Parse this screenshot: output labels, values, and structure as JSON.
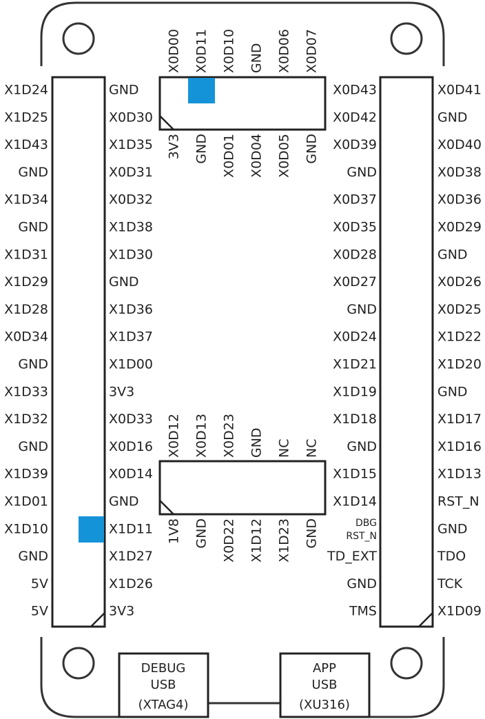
{
  "marker_color": "#1593d8",
  "line_color": "#222222",
  "left_header": {
    "outer_labels": [
      "X1D24",
      "X1D25",
      "X1D43",
      "GND",
      "X1D34",
      "GND",
      "X1D31",
      "X1D29",
      "X1D28",
      "X0D34",
      "GND",
      "X1D33",
      "X1D32",
      "GND",
      "X1D39",
      "X1D01",
      "X1D10",
      "GND",
      "5V",
      "5V"
    ],
    "inner_labels": [
      "GND",
      "X0D30",
      "X1D35",
      "X0D31",
      "X0D32",
      "X1D38",
      "X1D30",
      "GND",
      "X1D36",
      "X1D37",
      "X1D00",
      "3V3",
      "X0D33",
      "X0D16",
      "X0D14",
      "GND",
      "X1D11",
      "X1D27",
      "X1D26",
      "3V3"
    ]
  },
  "right_header": {
    "inner_labels": [
      "X0D43",
      "X0D42",
      "X0D39",
      "GND",
      "X0D37",
      "X0D35",
      "X0D28",
      "X0D27",
      "GND",
      "X0D24",
      "X1D21",
      "X1D19",
      "X1D18",
      "GND",
      "X1D15",
      "X1D14",
      "DBG\nRST_N",
      "TD_EXT",
      "GND",
      "TMS"
    ],
    "outer_labels": [
      "X0D41",
      "GND",
      "X0D40",
      "X0D38",
      "X0D36",
      "X0D29",
      "GND",
      "X0D26",
      "X0D25",
      "X1D22",
      "X1D20",
      "GND",
      "X1D17",
      "X1D16",
      "X1D13",
      "RST_N",
      "GND",
      "TDO",
      "TCK",
      "X1D09"
    ]
  },
  "top_header": {
    "top_labels": [
      "X0D00",
      "X0D11",
      "X0D10",
      "GND",
      "X0D06",
      "X0D07"
    ],
    "bottom_labels": [
      "3V3",
      "GND",
      "X0D01",
      "X0D04",
      "X0D05",
      "GND"
    ]
  },
  "middle_header": {
    "top_labels": [
      "X0D12",
      "X0D13",
      "X0D23",
      "GND",
      "NC",
      "NC"
    ],
    "bottom_labels": [
      "1V8",
      "GND",
      "X0D22",
      "X1D12",
      "X1D23",
      "GND"
    ]
  },
  "usb_ports": [
    {
      "lines": [
        "DEBUG",
        "USB",
        "(XTAG4)"
      ]
    },
    {
      "lines": [
        "APP",
        "USB",
        "(XU316)"
      ]
    }
  ]
}
